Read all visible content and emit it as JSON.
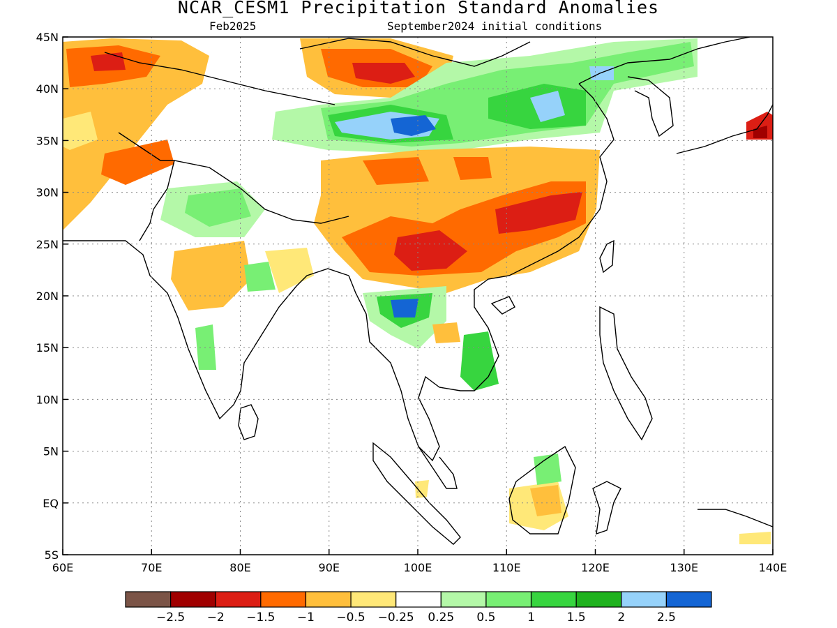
{
  "title": "NCAR_CESM1 Precipitation Standard Anomalies",
  "subtitle_left": "Feb2025",
  "subtitle_right": "September2024 initial conditions",
  "map": {
    "lon_range": [
      60,
      140
    ],
    "lat_range": [
      -5,
      45
    ],
    "x_ticks": [
      "60E",
      "70E",
      "80E",
      "90E",
      "100E",
      "110E",
      "120E",
      "130E",
      "140E"
    ],
    "y_ticks": [
      "45N",
      "40N",
      "35N",
      "30N",
      "25N",
      "20N",
      "15N",
      "10N",
      "5N",
      "EQ",
      "5S"
    ],
    "gridlines": true
  },
  "colorbar": {
    "colors": [
      "#7b5447",
      "#a00000",
      "#dc1e14",
      "#ff6a00",
      "#ffbf3c",
      "#ffe878",
      "#ffffff",
      "#b4f8a8",
      "#78ef74",
      "#37d53f",
      "#1fb21e",
      "#96d2fa",
      "#1465d4"
    ],
    "labels": [
      "−2.5",
      "−2",
      "−1.5",
      "−1",
      "−0.5",
      "−0.25",
      "0.25",
      "0.5",
      "1",
      "1.5",
      "2",
      "2.5"
    ]
  }
}
